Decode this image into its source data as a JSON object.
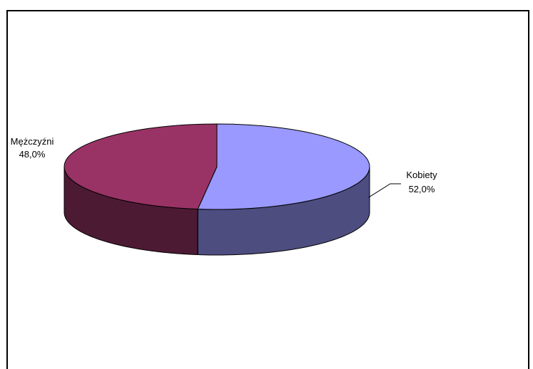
{
  "chart_data": {
    "type": "pie",
    "style": "3d",
    "categories": [
      "Kobiety",
      "Mężczyźni"
    ],
    "values": [
      52.0,
      48.0
    ],
    "value_labels": [
      "52,0%",
      "48,0%"
    ],
    "colors": {
      "Kobiety": {
        "top": "#9999ff",
        "side": "#4d4d80"
      },
      "Mężczyźni": {
        "top": "#993366",
        "side": "#4d1a33"
      }
    },
    "legend": "none",
    "title": ""
  }
}
